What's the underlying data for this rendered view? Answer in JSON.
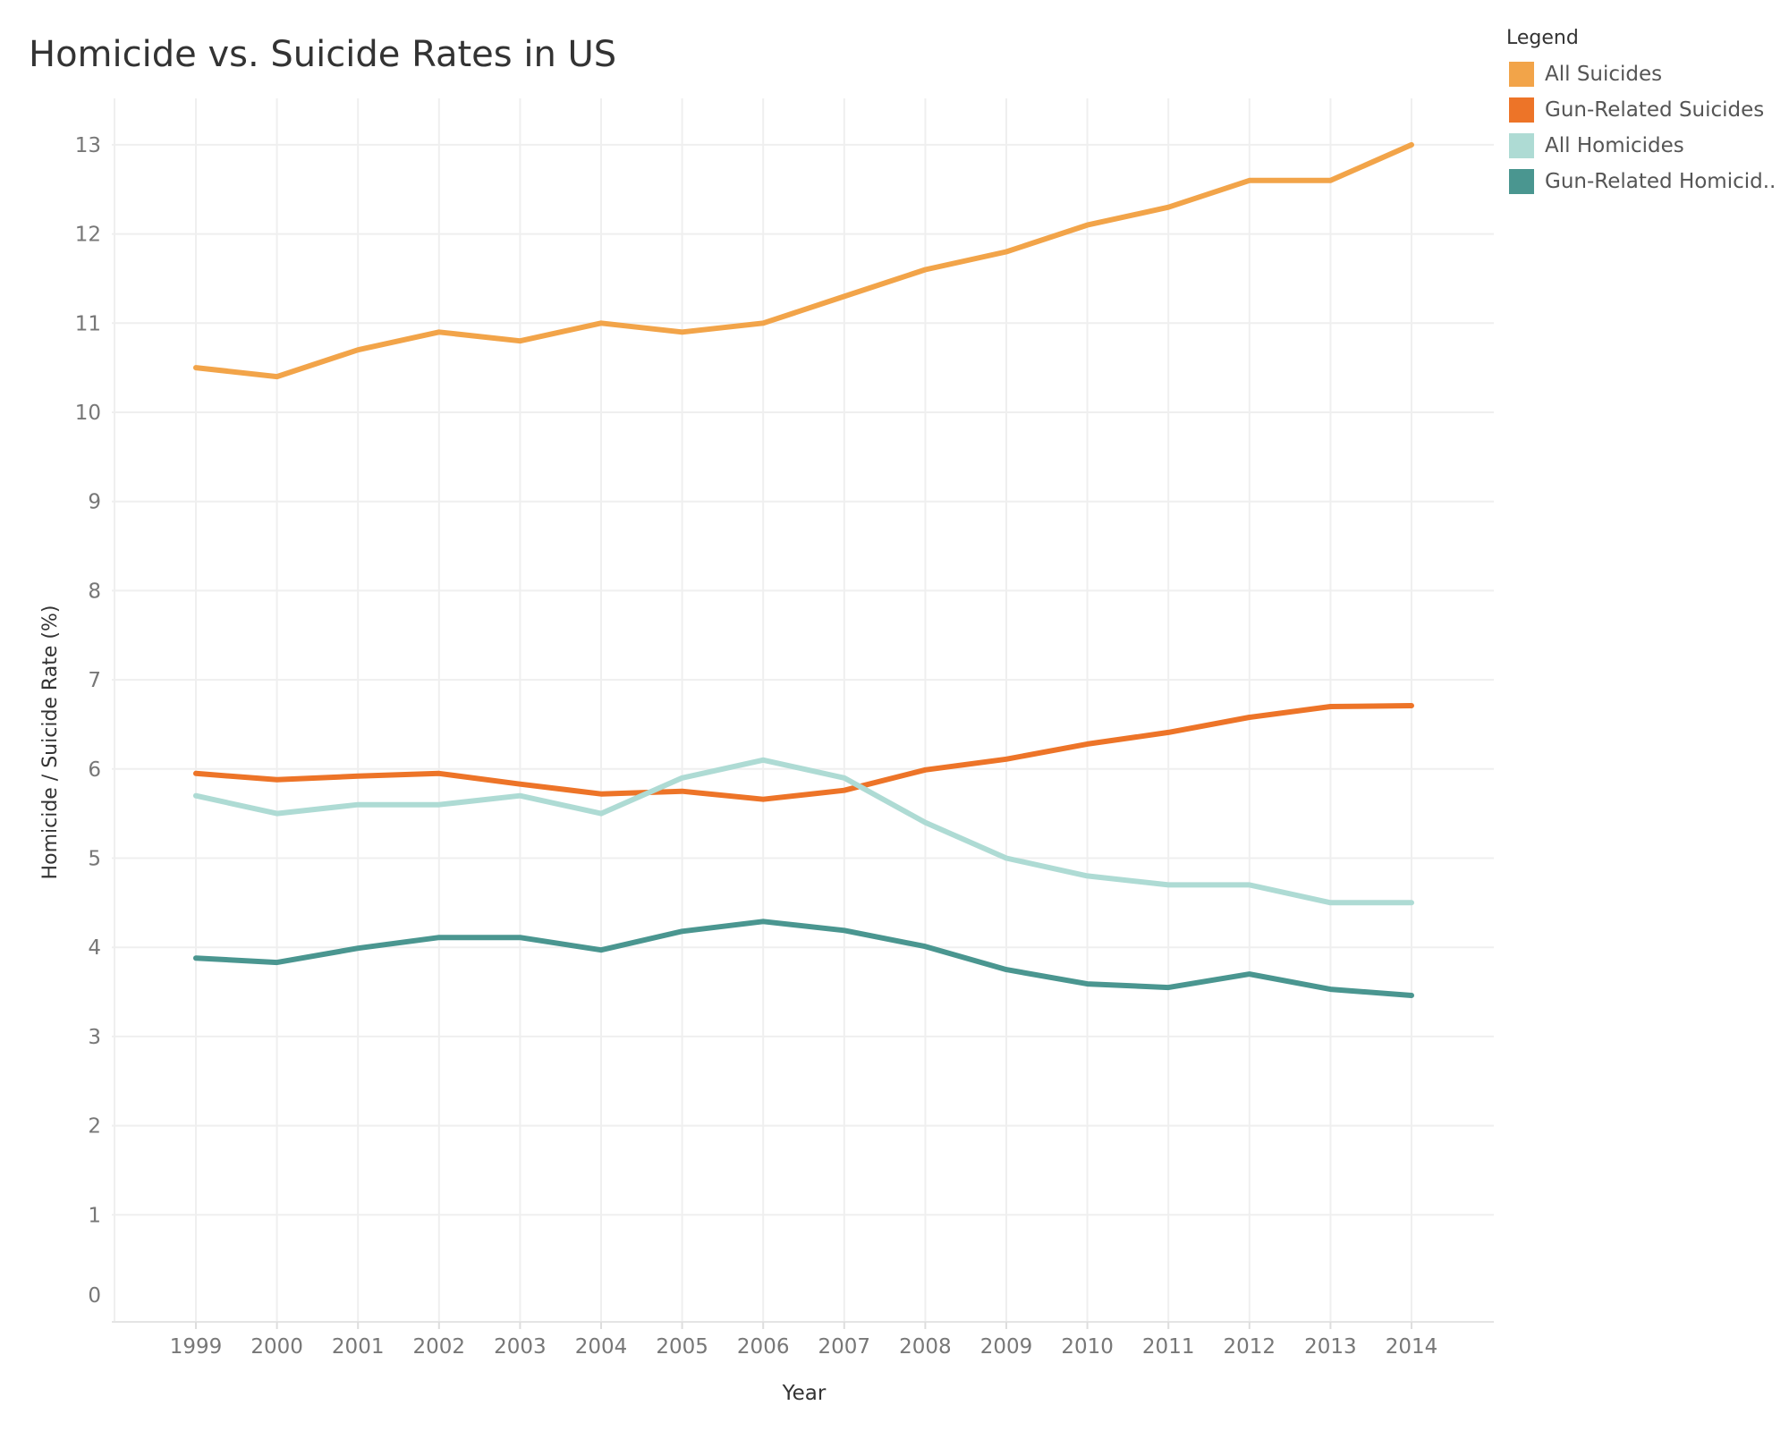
{
  "chart_data": {
    "type": "line",
    "title": "Homicide vs. Suicide Rates in US",
    "xlabel": "Year",
    "ylabel": "Homicide / Suicide Rate (%)",
    "ylim": [
      0,
      13.6
    ],
    "yticks": [
      0,
      1,
      2,
      3,
      4,
      5,
      6,
      7,
      8,
      9,
      10,
      11,
      12,
      13
    ],
    "grid": true,
    "legend_title": "Legend",
    "legend_position": "top-right",
    "x": [
      "1999",
      "2000",
      "2001",
      "2002",
      "2003",
      "2004",
      "2005",
      "2006",
      "2007",
      "2008",
      "2009",
      "2010",
      "2011",
      "2012",
      "2013",
      "2014"
    ],
    "series": [
      {
        "name": "All Suicides",
        "color": "#F2A449",
        "values": [
          10.5,
          10.4,
          10.7,
          10.9,
          10.8,
          11.0,
          10.9,
          11.0,
          11.3,
          11.6,
          11.8,
          12.1,
          12.3,
          12.6,
          12.6,
          13.0
        ]
      },
      {
        "name": "Gun-Related Suicides",
        "color": "#ED7428",
        "values": [
          5.95,
          5.88,
          5.92,
          5.95,
          5.83,
          5.72,
          5.75,
          5.66,
          5.76,
          5.99,
          6.11,
          6.28,
          6.41,
          6.58,
          6.7,
          6.71
        ]
      },
      {
        "name": "All Homicides",
        "color": "#AEDBD4",
        "values": [
          5.7,
          5.5,
          5.6,
          5.6,
          5.7,
          5.5,
          5.9,
          6.1,
          5.9,
          5.4,
          5.0,
          4.8,
          4.7,
          4.7,
          4.5,
          4.5
        ]
      },
      {
        "name": "Gun-Related Homicid..",
        "color": "#4A9690",
        "values": [
          3.88,
          3.83,
          3.99,
          4.11,
          4.11,
          3.97,
          4.18,
          4.29,
          4.19,
          4.01,
          3.75,
          3.59,
          3.55,
          3.7,
          3.53,
          3.46
        ]
      }
    ]
  },
  "colors": {
    "grid": "#EFEFEF",
    "tick_text": "#777777",
    "axis_title": "#333333"
  }
}
